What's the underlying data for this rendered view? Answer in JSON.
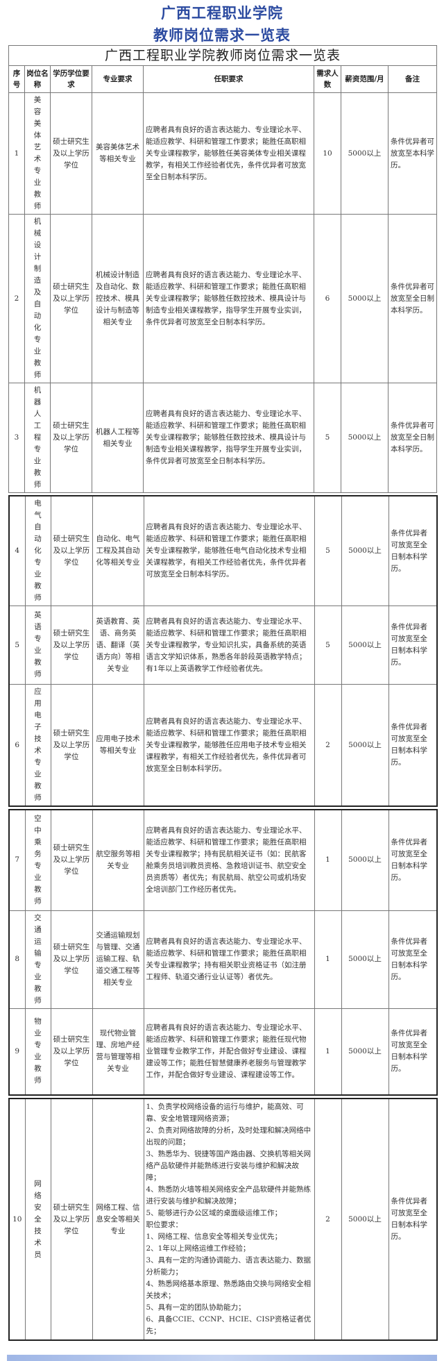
{
  "header": {
    "line1": "广西工程职业学院",
    "line2": "教师岗位需求一览表"
  },
  "table": {
    "title": "广西工程职业学院教师岗位需求一览表",
    "columns": [
      "序号",
      "岗位名称",
      "学历学位要求",
      "专业要求",
      "任职要求",
      "需求人数",
      "薪资范围/月",
      "备注"
    ],
    "rows": [
      {
        "no": "1",
        "post": "美容美体艺术专业教师",
        "degree": "硕士研究生及以上学历学位",
        "major": "美容美体艺术等相关专业",
        "req": "应聘者具有良好的语言表达能力、专业理论水平、能适应教学、科研和管理工作要求；能胜任高职相关专业课程教学，能够胜任美容美体专业相关课程教学，有相关工作经验者优先，条件优异者可放宽至全日制本科学历。",
        "count": "10",
        "salary": "5000以上",
        "note": "条件优异者可放宽至本科学历。"
      },
      {
        "no": "2",
        "post": "机械设计制造及自动化专业教师",
        "degree": "硕士研究生及以上学历学位",
        "major": "机械设计制造及自动化、数控技术、模具设计与制造等相关专业",
        "req": "应聘者具有良好的语言表达能力、专业理论水平、能适应教学、科研和管理工作要求；能胜任高职相关专业课程教学；能够胜任数控技术、模具设计与制造专业相关课程教学，指导学生开展专业实训，条件优异者可放宽至全日制本科学历。",
        "count": "6",
        "salary": "5000以上",
        "note": "条件优异者可放宽至全日制本科学历。"
      },
      {
        "no": "3",
        "post": "机器人工程专业教师",
        "degree": "硕士研究生及以上学历学位",
        "major": "机器人工程等相关专业",
        "req": "应聘者具有良好的语言表达能力、专业理论水平、能适应教学、科研和管理工作要求；能胜任高职相关专业课程教学；能够胜任数控技术、模具设计与制造专业相关课程教学，指导学生开展专业实训，条件优异者可放宽至全日制本科学历。",
        "count": "5",
        "salary": "5000以上",
        "note": "条件优异者可放宽至全日制本科学历。"
      },
      {
        "no": "4",
        "post": "电气自动化专业教师",
        "degree": "硕士研究生及以上学历学位",
        "major": "自动化、电气工程及其自动化等相关专业",
        "req": "应聘者具有良好的语言表达能力、专业理论水平、能适应教学、科研和管理工作要求；能胜任高职相关专业课程教学，能够胜任电气自动化技术专业相关课程教学，有相关工作经验者优先，条件优异者可放宽至全日制本科学历。",
        "count": "5",
        "salary": "5000以上",
        "note": "条件优异者可放宽至全日制本科学历。"
      },
      {
        "no": "5",
        "post": "英语专业教师",
        "degree": "硕士研究生及以上学历学位",
        "major": "英语教育、英语、商务英语、翻译（英语方向）等相关专业",
        "req": "应聘者具有良好的语言表达能力、专业理论水平、能适应教学、科研和管理工作要求；能胜任高职相关专业课程教学，专业知识扎实，具备系统的英语语言文学知识体系，熟悉各年龄段英语教学特点；有1年以上英语教学工作经验者优先。",
        "count": "5",
        "salary": "5000以上",
        "note": "条件优异者可放宽至全日制本科学历。"
      },
      {
        "no": "6",
        "post": "应用电子技术专业教师",
        "degree": "硕士研究生及以上学历学位",
        "major": "应用电子技术等相关专业",
        "req": "应聘者具有良好的语言表达能力、专业理论水平、能适应教学、科研和管理工作要求；能胜任高职相关专业课程教学，能够胜任应用电子技术专业相关课程教学，有相关工作经验者优先，条件优异者可放宽至全日制本科学历。",
        "count": "2",
        "salary": "5000以上",
        "note": "条件优异者可放宽至全日制本科学历。"
      },
      {
        "no": "7",
        "post": "空中乘务专业教师",
        "degree": "硕士研究生及以上学历学位",
        "major": "航空服务等相关专业",
        "req": "应聘者具有良好的语言表达能力、专业理论水平、能适应教学、科研和管理工作要求；能胜任高职相关专业课程教学；持有民航相关证书（如：民航客舱乘务员培训教员资格、急救培训证书、航空安全员资质等）者优先；有民航局、航空公司或机场安全培训部门工作经历者优先。",
        "count": "1",
        "salary": "5000以上",
        "note": "条件优异者可放宽至全日制本科学历。"
      },
      {
        "no": "8",
        "post": "交通运输专业教师",
        "degree": "硕士研究生及以上学历学位",
        "major": "交通运输规划与管理、交通运输工程、轨道交通工程等相关专业",
        "req": "应聘者具有良好的语言表达能力、专业理论水平、能适应教学、科研和管理工作要求；能胜任高职相关专业课程教学；持有相关职业资格证书（如注册工程师、轨道交通行业认证等）者优先。",
        "count": "1",
        "salary": "5000以上",
        "note": "条件优异者可放宽至全日制本科学历。"
      },
      {
        "no": "9",
        "post": "物业专业教师",
        "degree": "硕士研究生及以上学历学位",
        "major": "现代物业管理、房地产经营与管理等相关专业",
        "req": "应聘者具有良好的语言表达能力、专业理论水平、能适应教学、科研和管理工作要求；能胜任现代物业管理专业教学工作，并配合做好专业建设、课程建设等工作；能胜任智慧健康养老服务与管理教学工作，并配合做好专业建设、课程建设等工作。",
        "count": "1",
        "salary": "5000以上",
        "note": "条件优异者可放宽至全日制本科学历。"
      },
      {
        "no": "10",
        "post": "网络安全技术员",
        "degree": "硕士研究生及以上学历学位",
        "major": "网络工程、信息安全等相关专业",
        "req": "1、负责学校网络设备的运行与维护，能高效、可靠、安全地管理网络资源；\n2、负责对网络故障的分析，及时处理和解决网络中出现的问题；\n3、熟悉华为、锐捷等国产路由器、交换机等相关网络产品软硬件并能熟练进行安装与维护和解决故障；\n4、熟悉防火墙等相关网络安全产品软硬件并能熟练进行安装与维护和解决故障；\n5、能够进行办公区域的桌面级运维工作；\n职位要求：\n1、网络工程、信息安全等相关专业优先；\n2、1年以上网络运维工作经验；\n3、具有一定的沟通协调能力、语言表达能力、数据分析能力；\n4、熟悉网络基本原理、熟悉路由交换与网络安全相关技术；\n5、具有一定的团队协助能力；\n6、具备CCIE、CCNP、HCIE、CISP资格证者优先；",
        "count": "2",
        "salary": "5000以上",
        "note": "条件优异者可放宽至全日制本科学历。"
      }
    ]
  },
  "colors": {
    "title_blue": "#2b4aa0",
    "bottom_bar": "#9fb6e6"
  }
}
